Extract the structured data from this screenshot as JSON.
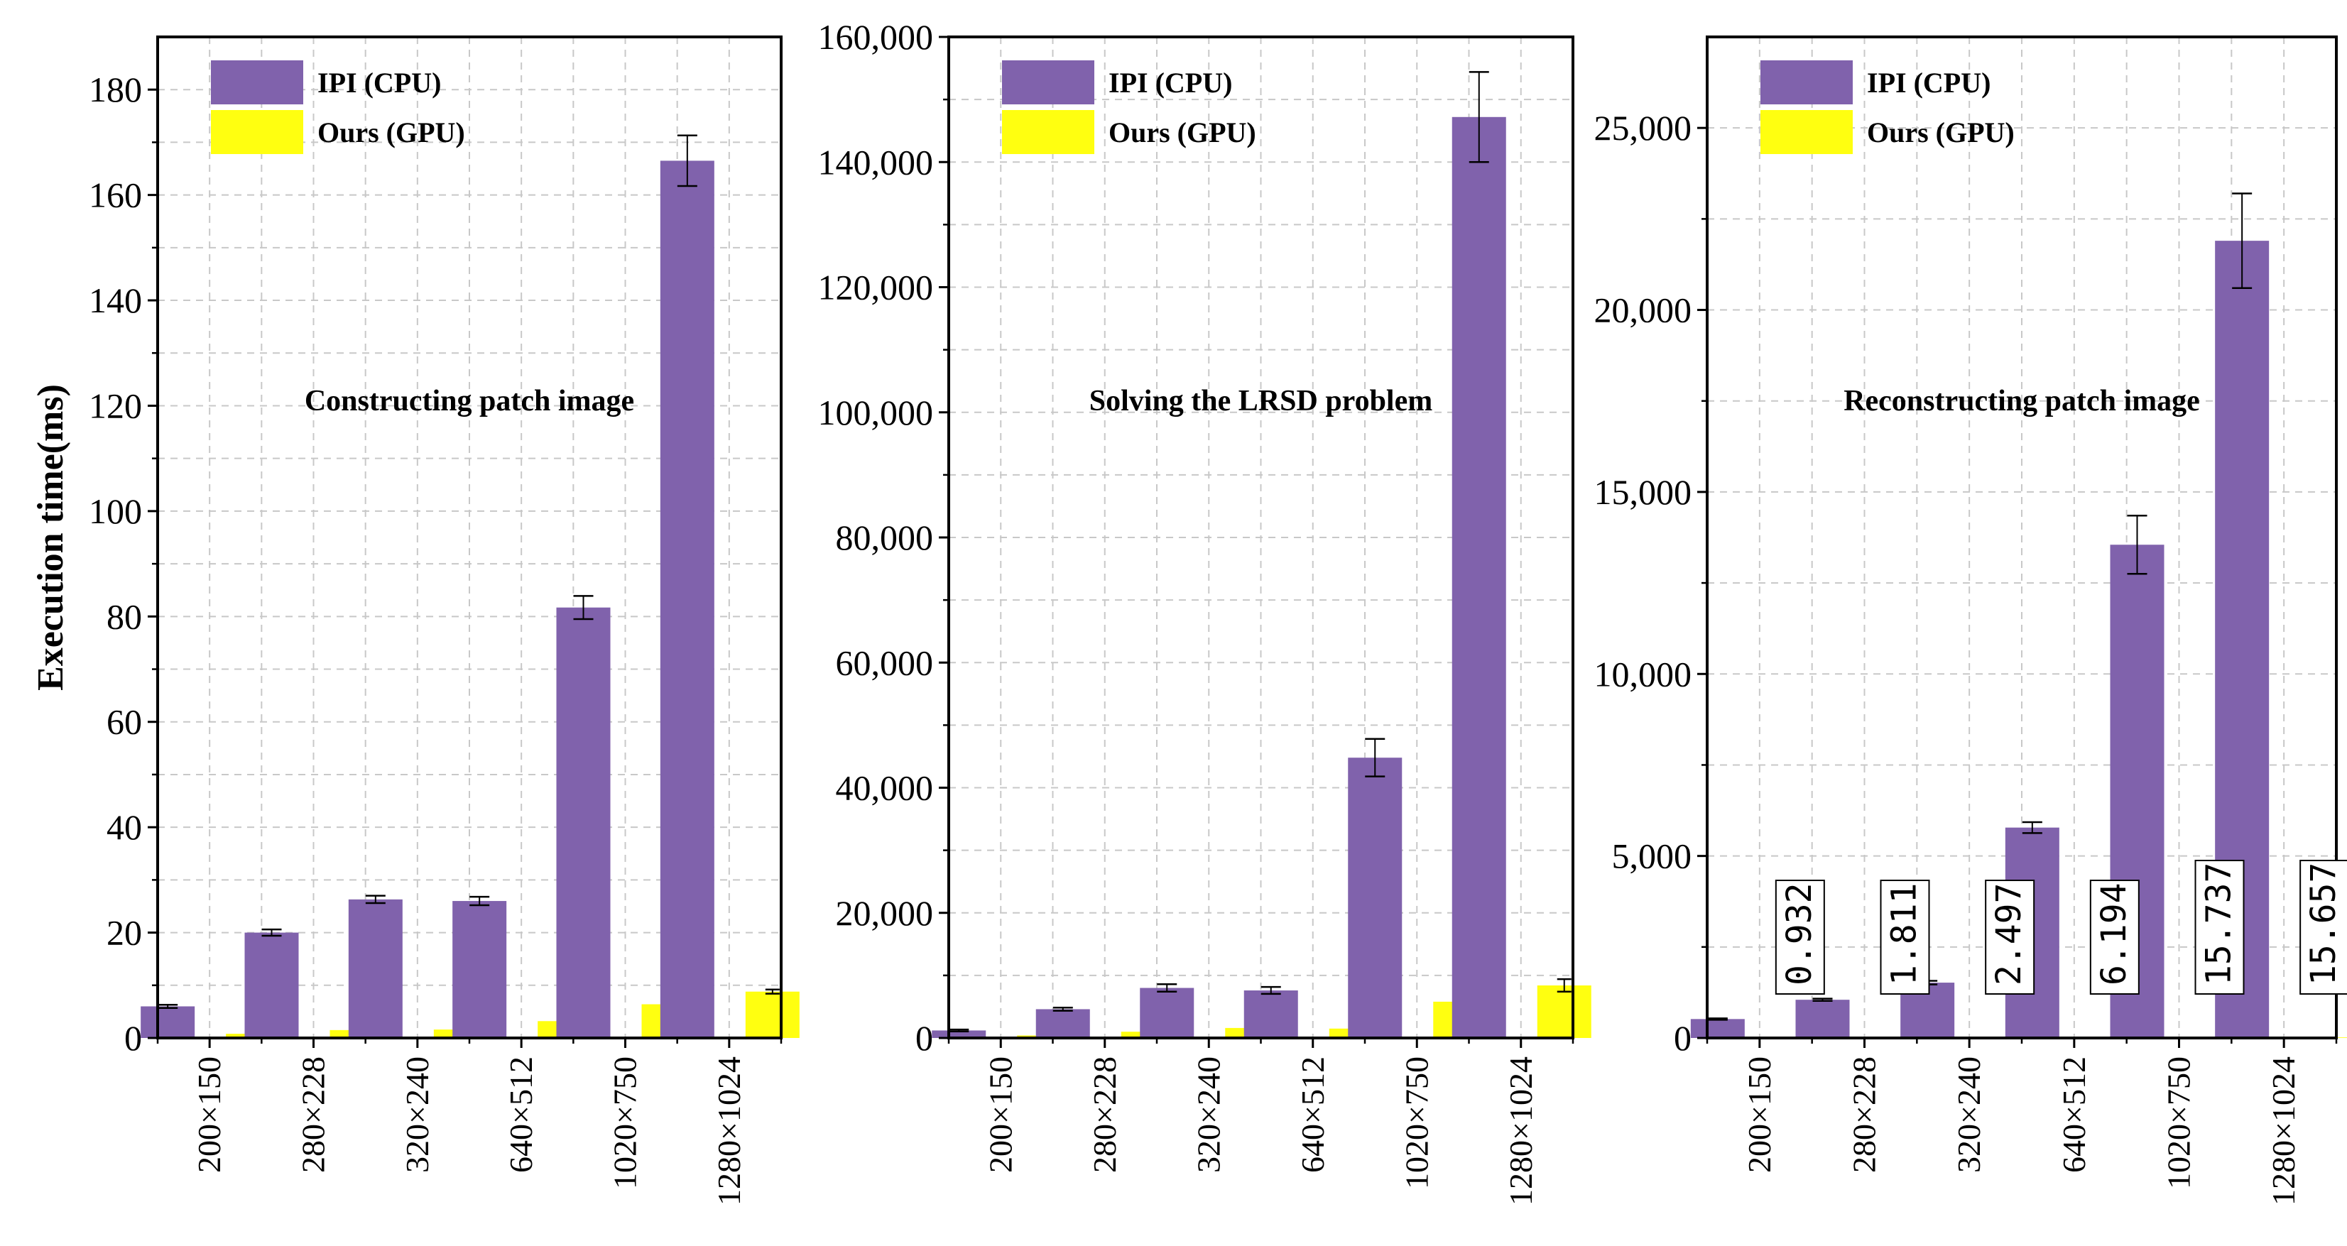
{
  "figure": {
    "ylabel": "Execution time(ms)"
  },
  "colors": {
    "cpu": "#8062AC",
    "gpu": "#FFFF10",
    "axis": "#000000",
    "grid": "#c8c8c8"
  },
  "chart_data": [
    {
      "type": "bar",
      "title": "Constructing patch image",
      "xlabel": "",
      "ylabel": "Execution time(ms)",
      "categories": [
        "200×150",
        "280×228",
        "320×240",
        "640×512",
        "1020×750",
        "1280×1024"
      ],
      "ylim": [
        0,
        190
      ],
      "yticks": [
        0,
        20,
        40,
        60,
        80,
        100,
        120,
        140,
        160,
        180
      ],
      "ytick_labels": [
        "0",
        "20",
        "40",
        "60",
        "80",
        "100",
        "120",
        "140",
        "160",
        "180"
      ],
      "grid": true,
      "legend": "top-left",
      "series": [
        {
          "name": "IPI (CPU)",
          "values": [
            6,
            20,
            26.3,
            26,
            81.7,
            166.5
          ],
          "errors": [
            0.3,
            0.6,
            0.7,
            0.8,
            2.2,
            4.8
          ]
        },
        {
          "name": "Ours (GPU)",
          "values": [
            0.8,
            1.5,
            1.6,
            3.2,
            6.4,
            8.8
          ],
          "errors": [
            0.1,
            0.1,
            0.2,
            0.2,
            0.3,
            0.4
          ]
        }
      ]
    },
    {
      "type": "bar",
      "title": "Solving the LRSD problem",
      "xlabel": "",
      "ylabel": "",
      "categories": [
        "200×150",
        "280×228",
        "320×240",
        "640×512",
        "1020×750",
        "1280×1024"
      ],
      "ylim": [
        0,
        160000
      ],
      "yticks": [
        0,
        20000,
        40000,
        60000,
        80000,
        100000,
        120000,
        140000,
        160000
      ],
      "ytick_labels": [
        "0",
        "20,000",
        "40,000",
        "60,000",
        "80,000",
        "100,000",
        "120,000",
        "140,000",
        "160,000"
      ],
      "grid": true,
      "legend": "top-left",
      "series": [
        {
          "name": "IPI (CPU)",
          "values": [
            1200,
            4600,
            8000,
            7600,
            44800,
            147200
          ],
          "errors": [
            150,
            250,
            600,
            550,
            3000,
            7200
          ]
        },
        {
          "name": "Ours (GPU)",
          "values": [
            400,
            1000,
            1600,
            1500,
            5800,
            8400
          ],
          "errors": [
            80,
            150,
            250,
            200,
            800,
            1000
          ]
        }
      ]
    },
    {
      "type": "bar",
      "title": "Reconstructing patch image",
      "xlabel": "",
      "ylabel": "",
      "categories": [
        "200×150",
        "280×228",
        "320×240",
        "640×512",
        "1020×750",
        "1280×1024"
      ],
      "ylim": [
        0,
        27500
      ],
      "yticks": [
        0,
        5000,
        10000,
        15000,
        20000,
        25000
      ],
      "ytick_labels": [
        "0",
        "5,000",
        "10,000",
        "15,000",
        "20,000",
        "25,000"
      ],
      "grid": true,
      "legend": "top-left",
      "series": [
        {
          "name": "IPI (CPU)",
          "values": [
            520,
            1050,
            1520,
            5780,
            13550,
            21900
          ],
          "errors": [
            20,
            30,
            50,
            150,
            800,
            1300
          ]
        },
        {
          "name": "Ours (GPU)",
          "values": [
            0.932,
            1.811,
            2.497,
            6.194,
            15.737,
            15.657
          ],
          "errors": [
            0,
            0,
            0,
            0,
            0,
            0
          ]
        }
      ],
      "annotations": [
        "0.932",
        "1.811",
        "2.497",
        "6.194",
        "15.737",
        "15.657"
      ]
    }
  ]
}
